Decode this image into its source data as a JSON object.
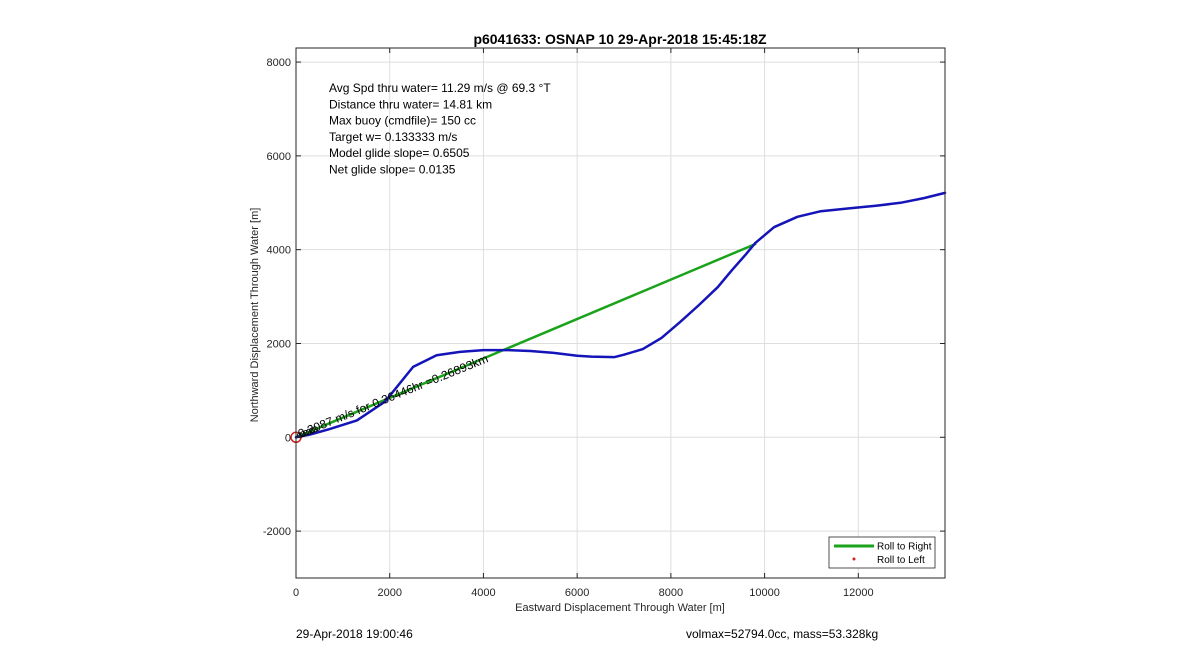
{
  "chart_data": {
    "type": "line",
    "title": "p6041633: OSNAP 10 29-Apr-2018 15:45:18Z",
    "xlabel": "Eastward Displacement Through Water [m]",
    "ylabel": "Northward Displacement Through Water [m]",
    "xlim": [
      0,
      13850
    ],
    "ylim": [
      -3000,
      8300
    ],
    "xticks": [
      0,
      2000,
      4000,
      6000,
      8000,
      10000,
      12000
    ],
    "yticks": [
      -2000,
      0,
      2000,
      4000,
      6000,
      8000
    ],
    "grid": true,
    "legend_position": "bottom-right",
    "legend": [
      {
        "label": "Roll to Right",
        "color": "#1aa31a",
        "marker": "line"
      },
      {
        "label": "Roll to Left",
        "color": "#cc2222",
        "marker": "dot"
      }
    ],
    "series": [
      {
        "name": "Roll to Right",
        "color": "#1aa31a",
        "x": [
          0,
          9800
        ],
        "y": [
          0,
          4120
        ]
      },
      {
        "color": "#1414b8",
        "x": [
          0,
          300,
          700,
          1300,
          1900,
          2500,
          3000,
          3500,
          4000,
          4500,
          5000,
          5500,
          6000,
          6300,
          6800,
          7000,
          7400,
          7800,
          8200,
          8600,
          9000,
          9300,
          9600,
          9800,
          10200,
          10700,
          11200,
          11800,
          12400,
          12900,
          13400,
          13850
        ],
        "y": [
          0,
          60,
          170,
          360,
          760,
          1500,
          1750,
          1820,
          1860,
          1860,
          1840,
          1800,
          1740,
          1720,
          1710,
          1760,
          1880,
          2120,
          2460,
          2820,
          3200,
          3560,
          3900,
          4140,
          4480,
          4700,
          4820,
          4880,
          4940,
          5000,
          5100,
          5210
        ]
      }
    ],
    "annotations": [
      "Avg Spd thru water= 11.29 m/s @  69.3 °T",
      "Distance thru water= 14.81 km",
      "Max buoy (cmdfile)= 150 cc",
      "Target w= 0.133333 m/s",
      "Model glide slope= 0.6505",
      "Net glide slope= 0.0135"
    ],
    "segment_label": "0.2087 m/s for 0.36446hr =0.26893km"
  },
  "footer": {
    "left": "29-Apr-2018 19:00:46",
    "right": "volmax=52794.0cc, mass=53.328kg"
  },
  "colors": {
    "roll_right": "#1aa31a",
    "roll_left": "#cc2222",
    "track": "#1414b8",
    "grid": "#dedede"
  }
}
